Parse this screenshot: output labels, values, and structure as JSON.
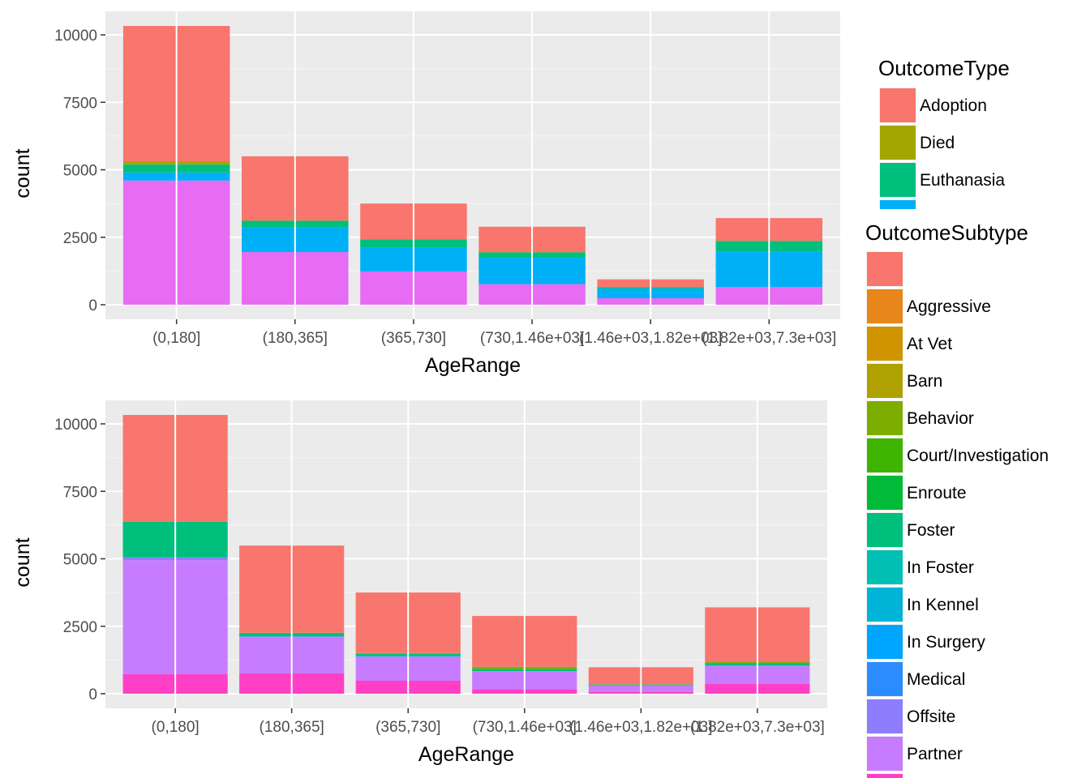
{
  "chart_data": [
    {
      "type": "bar",
      "stacked": true,
      "xlabel": "AgeRange",
      "ylabel": "count",
      "ylim": [
        0,
        10800
      ],
      "yticks": [
        0,
        2500,
        5000,
        7500,
        10000
      ],
      "grid": true,
      "legend": {
        "title": "OutcomeType",
        "placement": "right",
        "visible_entries": [
          {
            "label": "Adoption",
            "color": "#F8766D"
          },
          {
            "label": "Died",
            "color": "#A3A500"
          },
          {
            "label": "Euthanasia",
            "color": "#00BF7D"
          },
          {
            "label": "",
            "color": "#00B0F6"
          }
        ]
      },
      "categories": [
        "(0,180]",
        "(180,365]",
        "(365,730]",
        "(730,1.46e+03]",
        "(1.46e+03,1.82e+03]",
        "(1.82e+03,7.3e+03]"
      ],
      "series": [
        {
          "color": "#E76BF3",
          "values": [
            4600,
            1950,
            1230,
            760,
            240,
            660
          ]
        },
        {
          "color": "#00B0F6",
          "values": [
            300,
            930,
            900,
            980,
            360,
            1310
          ]
        },
        {
          "color": "#00BF7D",
          "values": [
            300,
            230,
            290,
            200,
            50,
            390
          ]
        },
        {
          "color": "#A3A500",
          "values": [
            100,
            10,
            10,
            10,
            10,
            10
          ]
        },
        {
          "color": "#F8766D",
          "values": [
            5030,
            2380,
            1320,
            940,
            280,
            840
          ]
        }
      ]
    },
    {
      "type": "bar",
      "stacked": true,
      "xlabel": "AgeRange",
      "ylabel": "count",
      "ylim": [
        0,
        10800
      ],
      "yticks": [
        0,
        2500,
        5000,
        7500,
        10000
      ],
      "grid": true,
      "legend": {
        "title": "OutcomeSubtype",
        "placement": "right",
        "visible_entries": [
          {
            "label": "",
            "color": "#F8766D"
          },
          {
            "label": "Aggressive",
            "color": "#E7861B"
          },
          {
            "label": "At Vet",
            "color": "#CF9400"
          },
          {
            "label": "Barn",
            "color": "#AFA100"
          },
          {
            "label": "Behavior",
            "color": "#7CAE00"
          },
          {
            "label": "Court/Investigation",
            "color": "#3CB400"
          },
          {
            "label": "Enroute",
            "color": "#00BA38"
          },
          {
            "label": "Foster",
            "color": "#00BF7D"
          },
          {
            "label": "In Foster",
            "color": "#00BFB3"
          },
          {
            "label": "In Kennel",
            "color": "#00B4D8"
          },
          {
            "label": "In Surgery",
            "color": "#00A5FF"
          },
          {
            "label": "Medical",
            "color": "#2B8CFF"
          },
          {
            "label": "Offsite",
            "color": "#8F7DFF"
          },
          {
            "label": "Partner",
            "color": "#C77CFF"
          },
          {
            "label": "",
            "color": "#FF3FC6"
          }
        ]
      },
      "categories": [
        "(0,180]",
        "(180,365]",
        "(365,730]",
        "(730,1.46e+03]",
        "(1.46e+03,1.82e+03]",
        "(1.82e+03,7.3e+03]"
      ],
      "series": [
        {
          "color": "#FF3FC6",
          "values": [
            720,
            750,
            480,
            170,
            70,
            360
          ]
        },
        {
          "color": "#C77CFF",
          "values": [
            4230,
            1350,
            880,
            650,
            220,
            660
          ]
        },
        {
          "color": "#8F7DFF",
          "values": [
            100,
            20,
            20,
            10,
            10,
            10
          ]
        },
        {
          "color": "#00BFB3",
          "values": [
            10,
            10,
            20,
            10,
            10,
            10
          ]
        },
        {
          "color": "#00BF7D",
          "values": [
            1310,
            120,
            80,
            80,
            30,
            100
          ]
        },
        {
          "color": "#7CAE00",
          "values": [
            10,
            10,
            30,
            80,
            10,
            30
          ]
        },
        {
          "color": "#F8766D",
          "values": [
            3950,
            3230,
            2240,
            1880,
            630,
            2030
          ]
        }
      ]
    }
  ]
}
